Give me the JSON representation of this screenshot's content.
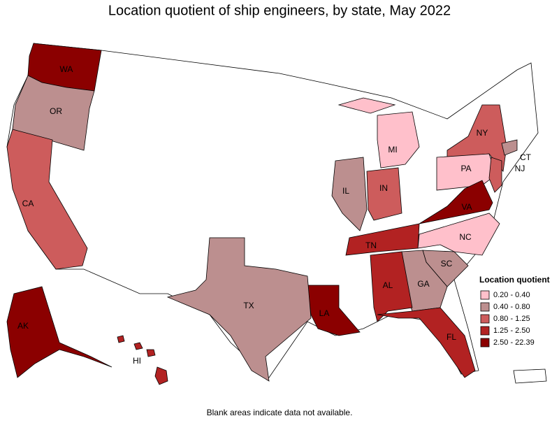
{
  "title": "Location quotient of ship engineers, by state, May 2022",
  "note": "Blank areas indicate data not available.",
  "legend": {
    "title": "Location quotient",
    "items": [
      {
        "label": "0.20 - 0.40",
        "color": "#ffc0cb"
      },
      {
        "label": "0.40 - 0.80",
        "color": "#bc8f8f"
      },
      {
        "label": "0.80 - 1.25",
        "color": "#cd5c5c"
      },
      {
        "label": "1.25 - 2.50",
        "color": "#b22222"
      },
      {
        "label": "2.50 - 22.39",
        "color": "#8b0000"
      }
    ]
  },
  "states": [
    {
      "label": "WA",
      "color": "#8b0000"
    },
    {
      "label": "OR",
      "color": "#bc8f8f"
    },
    {
      "label": "CA",
      "color": "#cd5c5c"
    },
    {
      "label": "MI",
      "color": "#ffc0cb"
    },
    {
      "label": "NY",
      "color": "#cd5c5c"
    },
    {
      "label": "PA",
      "color": "#ffc0cb"
    },
    {
      "label": "CT",
      "color": "#bc8f8f"
    },
    {
      "label": "NJ",
      "color": "#cd5c5c"
    },
    {
      "label": "IL",
      "color": "#bc8f8f"
    },
    {
      "label": "IN",
      "color": "#cd5c5c"
    },
    {
      "label": "VA",
      "color": "#8b0000"
    },
    {
      "label": "NC",
      "color": "#ffc0cb"
    },
    {
      "label": "TN",
      "color": "#b22222"
    },
    {
      "label": "SC",
      "color": "#bc8f8f"
    },
    {
      "label": "GA",
      "color": "#bc8f8f"
    },
    {
      "label": "AL",
      "color": "#b22222"
    },
    {
      "label": "FL",
      "color": "#b22222"
    },
    {
      "label": "LA",
      "color": "#8b0000"
    },
    {
      "label": "TX",
      "color": "#bc8f8f"
    },
    {
      "label": "AK",
      "color": "#8b0000"
    },
    {
      "label": "HI",
      "color": "#b22222"
    }
  ]
}
